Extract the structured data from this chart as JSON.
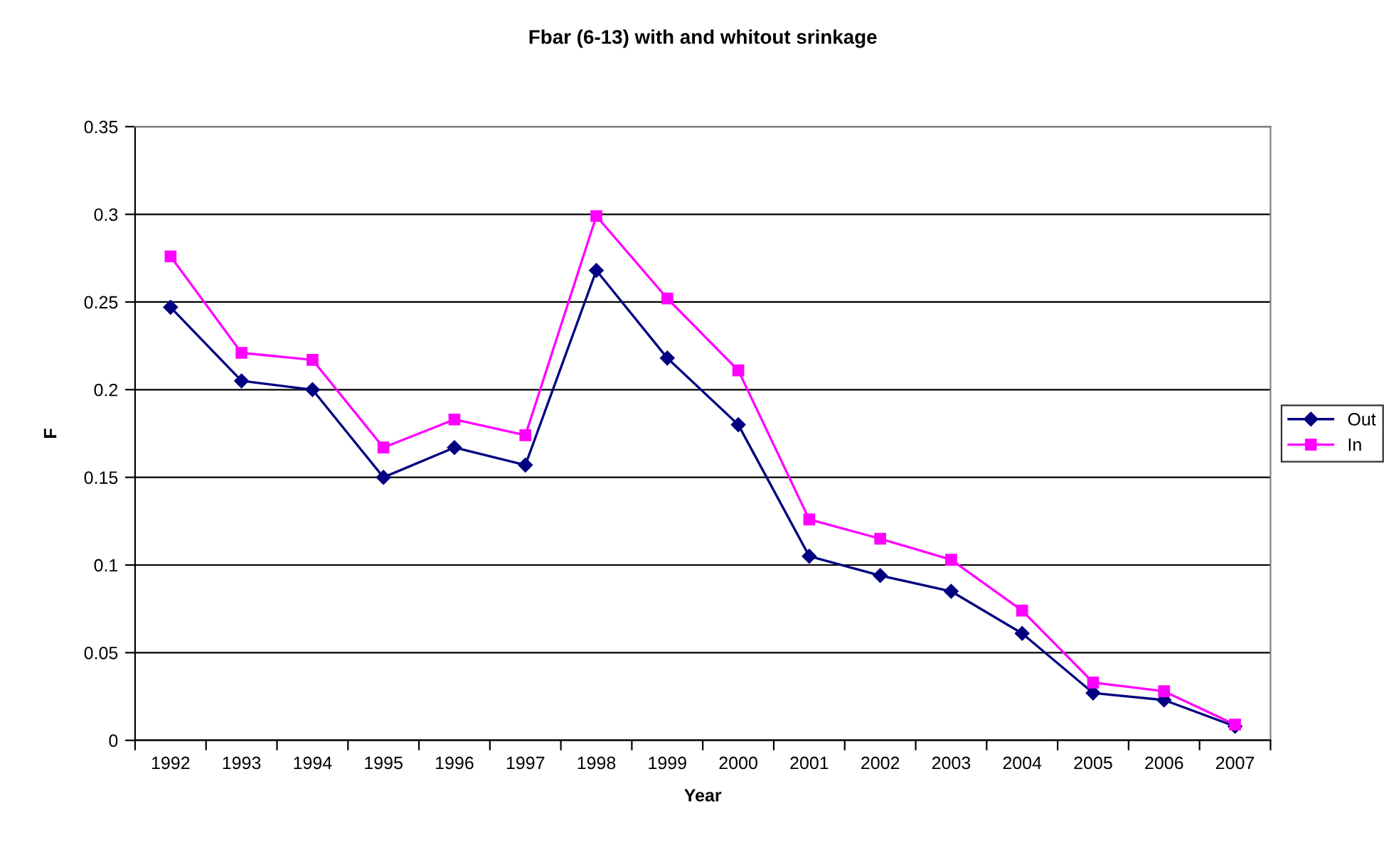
{
  "chart_data": {
    "type": "line",
    "title": "Fbar (6-13) with and whitout srinkage",
    "xlabel": "Year",
    "ylabel": "F",
    "categories": [
      "1992",
      "1993",
      "1994",
      "1995",
      "1996",
      "1997",
      "1998",
      "1999",
      "2000",
      "2001",
      "2002",
      "2003",
      "2004",
      "2005",
      "2006",
      "2007"
    ],
    "series": [
      {
        "name": "Out",
        "color": "#000080",
        "marker": "diamond",
        "values": [
          0.247,
          0.205,
          0.2,
          0.15,
          0.167,
          0.157,
          0.268,
          0.218,
          0.18,
          0.105,
          0.094,
          0.085,
          0.061,
          0.027,
          0.023,
          0.008
        ]
      },
      {
        "name": "In",
        "color": "#ff00ff",
        "marker": "square",
        "values": [
          0.276,
          0.221,
          0.217,
          0.167,
          0.183,
          0.174,
          0.299,
          0.252,
          0.211,
          0.126,
          0.115,
          0.103,
          0.074,
          0.033,
          0.028,
          0.009
        ]
      }
    ],
    "ylim": [
      0,
      0.35
    ],
    "yticks": [
      0,
      0.05,
      0.1,
      0.15,
      0.2,
      0.25,
      0.3,
      0.35
    ],
    "grid": "y",
    "legend": "right",
    "line_style": "solid"
  }
}
